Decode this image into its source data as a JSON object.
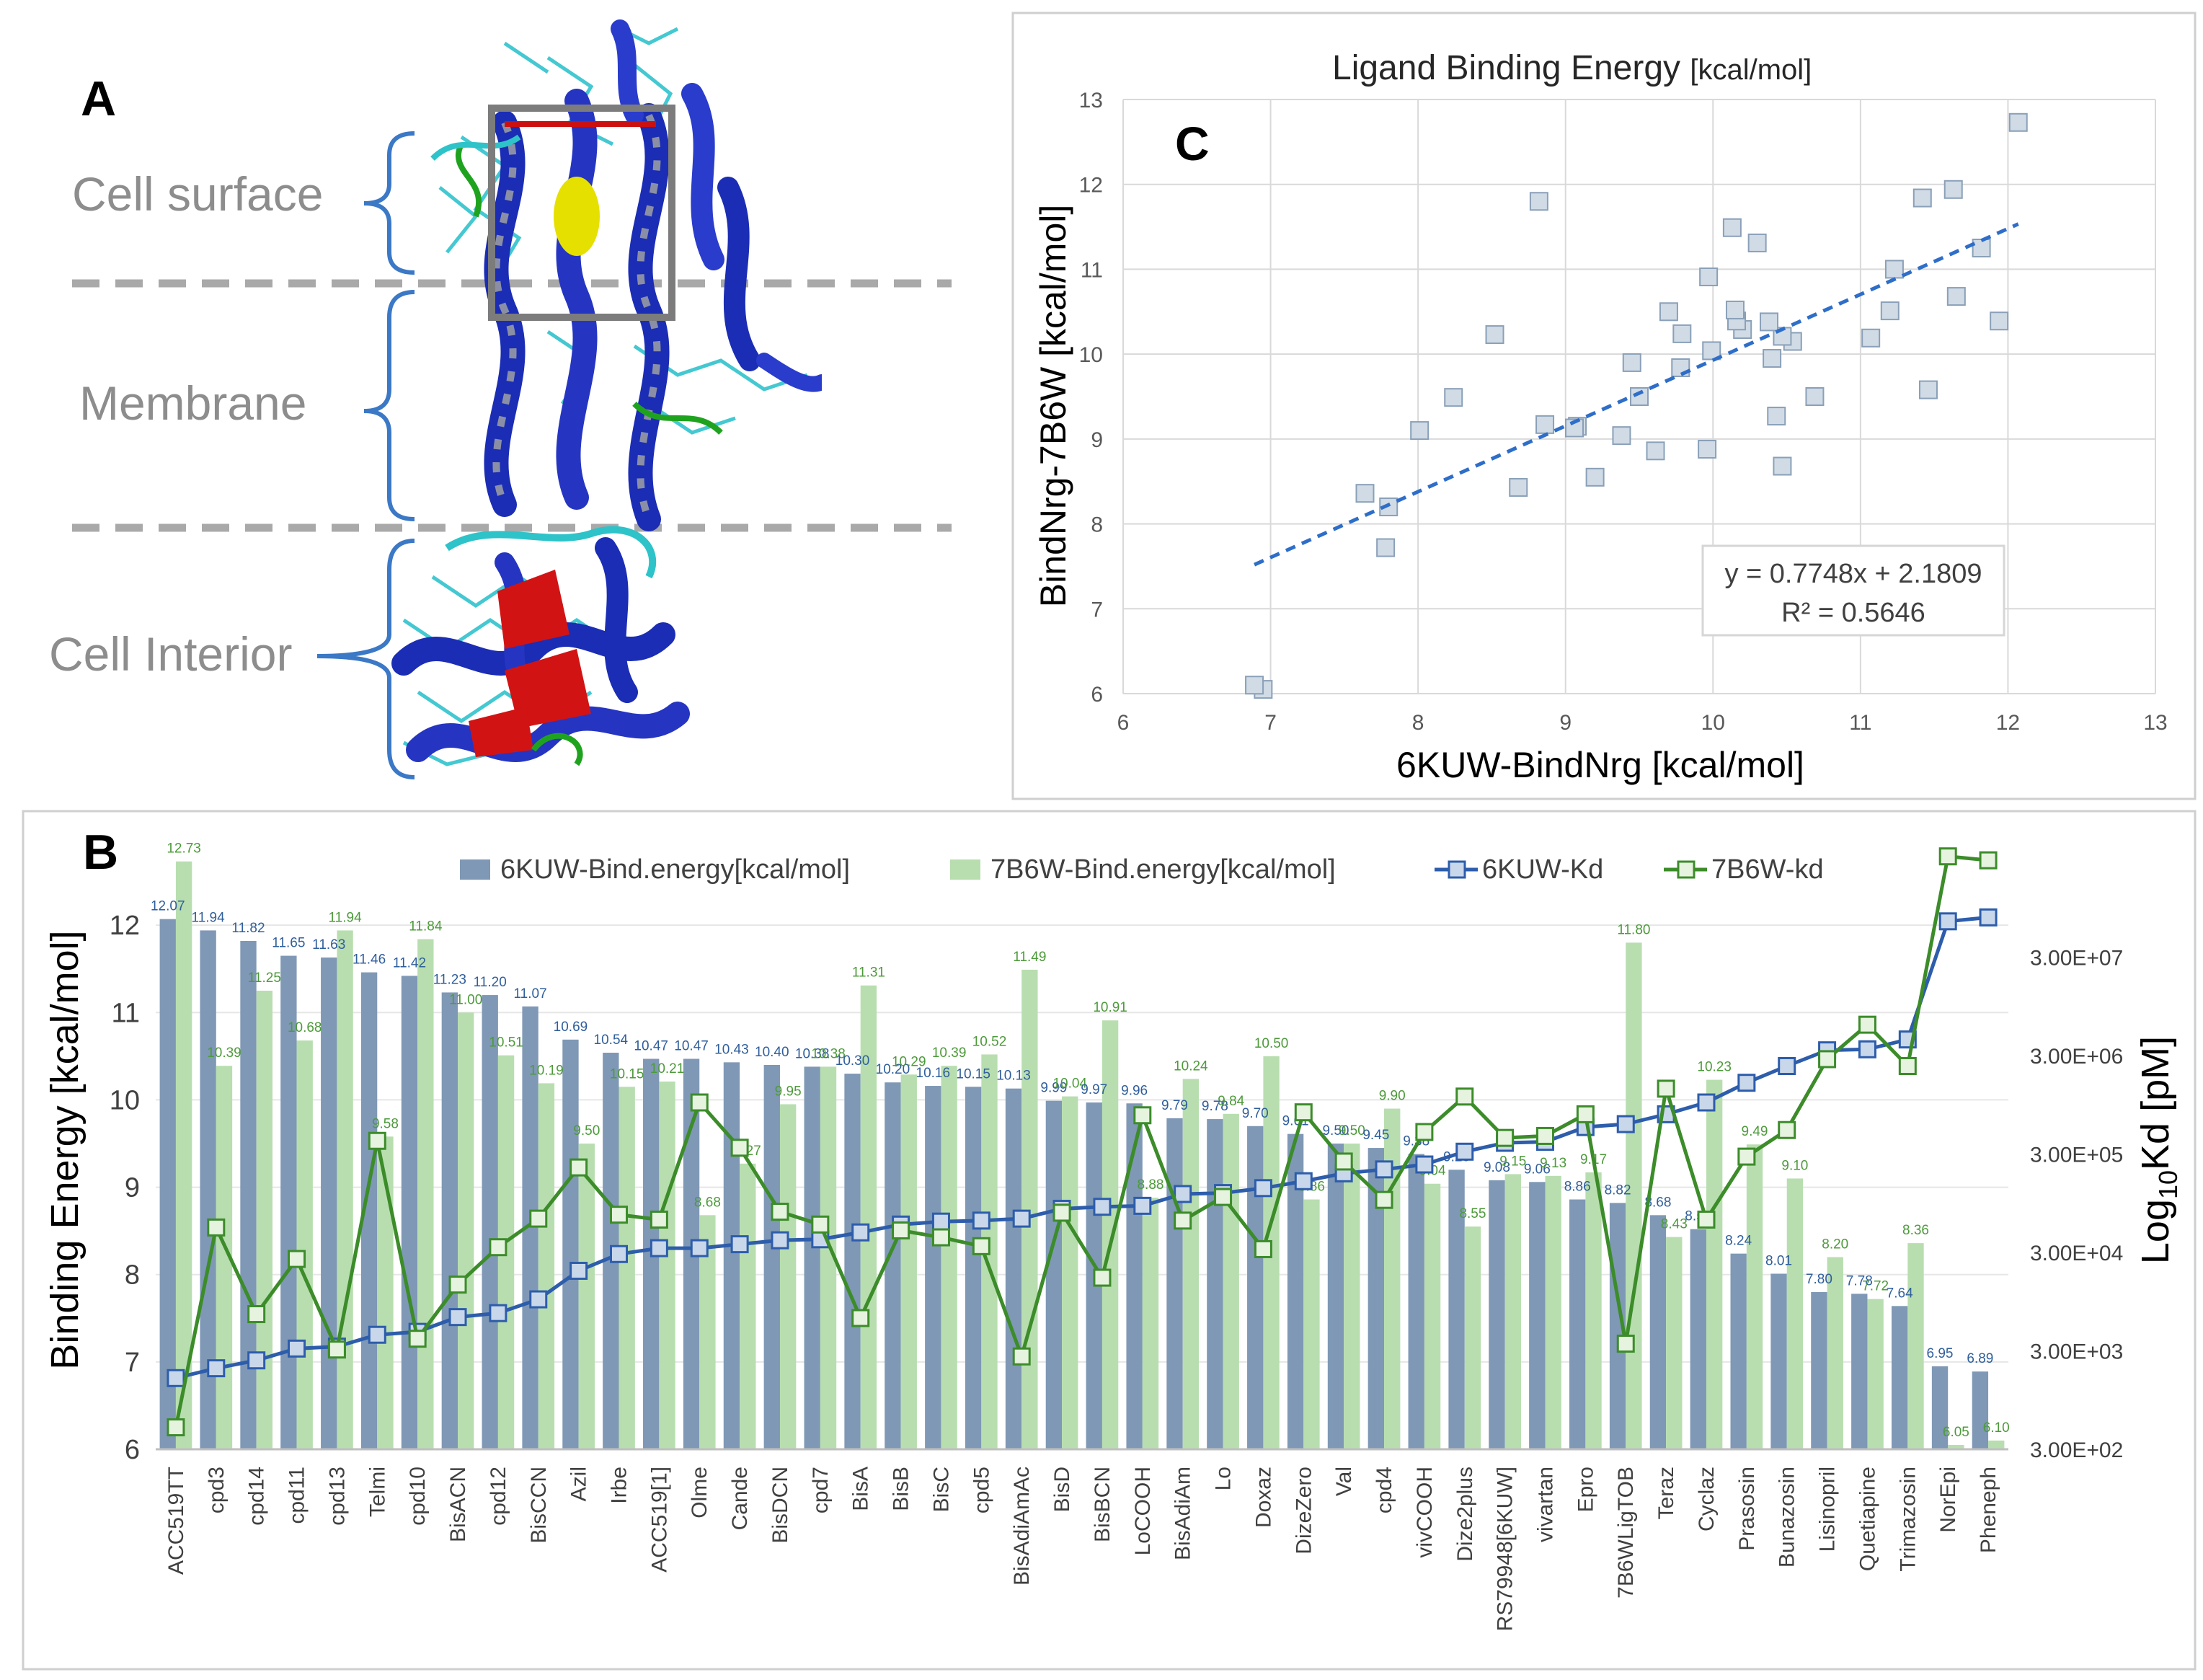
{
  "panel_a": {
    "label": "A",
    "regions": [
      {
        "name": "cell-surface",
        "text": "Cell surface"
      },
      {
        "name": "membrane",
        "text": "Membrane"
      },
      {
        "name": "cell-interior",
        "text": "Cell Interior"
      }
    ]
  },
  "panel_c": {
    "label": "C",
    "title": "Ligand Binding Energy ",
    "title_unit": "[kcal/mol]",
    "equation": "y = 0.7748x + 2.1809",
    "r_squared": "R² = 0.5646"
  },
  "panel_b": {
    "label": "B"
  },
  "colors": {
    "kuw_bar": "#7f98b5",
    "b6w_bar": "#b8deb0",
    "kuw_line": "#2d5dab",
    "b6w_line": "#3c8c2a",
    "kuw_label": "#2f5e9c",
    "b6w_label": "#4d9a3a",
    "scatter_pt": "#d0dbe6",
    "scatter_edge": "#8aa0b8",
    "trend": "#2e6ec9"
  },
  "chart_data": [
    {
      "type": "scatter",
      "title": "Ligand Binding Energy [kcal/mol]",
      "xlabel": "6KUW-BindNrg [kcal/mol]",
      "ylabel": "BindNrg-7B6W [kcal/mol]",
      "xlim": [
        6,
        13
      ],
      "ylim": [
        6,
        13
      ],
      "xticks": [
        6,
        7,
        8,
        9,
        10,
        11,
        12,
        13
      ],
      "yticks": [
        6,
        7,
        8,
        9,
        10,
        11,
        12,
        13
      ],
      "grid": true,
      "trendline": {
        "slope": 0.7748,
        "intercept": 2.1809,
        "x_range": [
          6.89,
          12.07
        ]
      },
      "points_x": [
        12.07,
        11.94,
        11.82,
        11.65,
        11.63,
        11.46,
        11.42,
        11.23,
        11.2,
        11.07,
        10.69,
        10.54,
        10.47,
        10.47,
        10.43,
        10.4,
        10.38,
        10.3,
        10.2,
        10.16,
        10.15,
        10.13,
        9.99,
        9.97,
        9.96,
        9.79,
        9.78,
        9.7,
        9.61,
        9.5,
        9.45,
        9.38,
        9.2,
        9.08,
        9.06,
        8.86,
        8.82,
        8.68,
        8.52,
        8.24,
        8.01,
        7.8,
        7.78,
        7.64,
        6.95,
        6.89
      ],
      "points_y": [
        12.73,
        10.39,
        11.25,
        10.68,
        11.94,
        9.58,
        11.84,
        11.0,
        10.51,
        10.19,
        9.5,
        10.15,
        10.21,
        8.68,
        9.27,
        9.95,
        10.38,
        11.31,
        10.29,
        10.39,
        10.52,
        11.49,
        10.04,
        10.91,
        8.88,
        10.24,
        9.84,
        10.5,
        8.86,
        9.5,
        9.9,
        9.04,
        8.55,
        9.15,
        9.13,
        9.17,
        11.8,
        8.43,
        10.23,
        9.49,
        9.1,
        8.2,
        7.72,
        8.36,
        6.05,
        6.1
      ]
    },
    {
      "type": "bar",
      "ylabel": "Binding Energy [kcal/mol]",
      "y2label": "Log10Kd [pM]",
      "ylim": [
        6,
        13
      ],
      "yticks": [
        6,
        7,
        8,
        9,
        10,
        11,
        12
      ],
      "y2ticks": [
        "3.00E+02",
        "3.00E+03",
        "3.00E+04",
        "3.00E+05",
        "3.00E+06",
        "3.00E+07"
      ],
      "y2_log_range": [
        2.477,
        8.3
      ],
      "legend": [
        "6KUW-Bind.energy[kcal/mol]",
        "7B6W-Bind.energy[kcal/mol]",
        "6KUW-Kd",
        "7B6W-kd"
      ],
      "legend_position": "top",
      "categories": [
        "ACC519TT",
        "cpd3",
        "cpd14",
        "cpd11",
        "cpd13",
        "Telmi",
        "cpd10",
        "BisACN",
        "cpd12",
        "BisCCN",
        "Azil",
        "Irbe",
        "ACC519[1]",
        "Olme",
        "Cande",
        "BisDCN",
        "cpd7",
        "BisA",
        "BisB",
        "BisC",
        "cpd5",
        "BisAdiAmAc",
        "BisD",
        "BisBCN",
        "LoCOOH",
        "BisAdiAm",
        "Lo",
        "Doxaz",
        "DizeZero",
        "Val",
        "cpd4",
        "vivCOOH",
        "Dize2plus",
        "RS79948[6KUW]",
        "vivartan",
        "Epro",
        "7B6WLigTOB",
        "Teraz",
        "Cyclaz",
        "Prasosin",
        "Bunazosin",
        "Lisinopril",
        "Quetiapine",
        "Trimazosin",
        "NorEpi",
        "Pheneph"
      ],
      "series": [
        {
          "name": "6KUW-Bind.energy[kcal/mol]",
          "values": [
            12.07,
            11.94,
            11.82,
            11.65,
            11.63,
            11.46,
            11.42,
            11.23,
            11.2,
            11.07,
            10.69,
            10.54,
            10.47,
            10.47,
            10.43,
            10.4,
            10.38,
            10.3,
            10.2,
            10.16,
            10.15,
            10.13,
            9.99,
            9.97,
            9.96,
            9.79,
            9.78,
            9.7,
            9.61,
            9.5,
            9.45,
            9.38,
            9.2,
            9.08,
            9.06,
            8.86,
            8.82,
            8.68,
            8.52,
            8.24,
            8.01,
            7.8,
            7.78,
            7.64,
            6.95,
            6.89
          ],
          "labels": [
            "12.07",
            "11.94",
            "11.82",
            "11.65",
            "11.63",
            "11.46",
            "11.42",
            "11.23",
            "11.20",
            "11.07",
            "10.69",
            "10.54",
            "10.47",
            "10.47",
            "10.43",
            "10.40",
            "10.38",
            "10.30",
            "10.20",
            "10.16",
            "10.15",
            "10.13",
            "9.99",
            "9.97",
            "9.96",
            "9.79",
            "9.78",
            "9.70",
            "9.61",
            "9.50",
            "9.45",
            "9.38",
            "9.20",
            "9.08",
            "9.06",
            "8.86",
            "8.82",
            "8.68",
            "8.52",
            "8.24",
            "8.01",
            "7.80",
            "7.78",
            "7.64",
            "6.95",
            "6.89"
          ]
        },
        {
          "name": "7B6W-Bind.energy[kcal/mol]",
          "values": [
            12.73,
            10.39,
            11.25,
            10.68,
            11.94,
            9.58,
            11.84,
            11.0,
            10.51,
            10.19,
            9.5,
            10.15,
            10.21,
            8.68,
            9.27,
            9.95,
            10.38,
            11.31,
            10.29,
            10.39,
            10.52,
            11.49,
            10.04,
            10.91,
            8.88,
            10.24,
            9.84,
            10.5,
            8.86,
            9.5,
            9.9,
            9.04,
            8.55,
            9.15,
            9.13,
            9.17,
            11.8,
            8.43,
            10.23,
            9.49,
            9.1,
            8.2,
            7.72,
            8.36,
            6.05,
            6.1
          ],
          "labels": [
            "12.73",
            "10.39",
            "11.25",
            "10.68",
            "11.94",
            "9.58",
            "11.84",
            "11.00",
            "10.51",
            "10.19",
            "9.50",
            "10.15",
            "10.21",
            "8.68",
            "9.27",
            "9.95",
            "10.38",
            "11.31",
            "10.29",
            "10.39",
            "10.52",
            "11.49",
            "10.04",
            "10.91",
            "8.88",
            "10.24",
            "9.84",
            "10.50",
            "8.86",
            "9.50",
            "9.90",
            "9.04",
            "8.55",
            "9.15",
            "9.13",
            "9.17",
            "11.80",
            "8.43",
            "10.23",
            "9.49",
            "9.10",
            "8.20",
            "7.72",
            "8.36",
            "6.05",
            "6.10"
          ]
        },
        {
          "name": "6KUW-Kd",
          "log10_values": [
            3.2,
            3.3,
            3.38,
            3.5,
            3.52,
            3.64,
            3.67,
            3.82,
            3.86,
            4.0,
            4.29,
            4.46,
            4.52,
            4.52,
            4.56,
            4.6,
            4.61,
            4.68,
            4.76,
            4.79,
            4.8,
            4.82,
            4.92,
            4.94,
            4.95,
            5.07,
            5.08,
            5.13,
            5.2,
            5.28,
            5.32,
            5.37,
            5.5,
            5.59,
            5.6,
            5.75,
            5.78,
            5.88,
            6.0,
            6.2,
            6.37,
            6.53,
            6.54,
            6.64,
            7.84,
            7.88
          ]
        },
        {
          "name": "7B6W-kd",
          "log10_values": [
            2.7,
            4.73,
            3.85,
            4.41,
            3.49,
            5.61,
            3.6,
            4.15,
            4.53,
            4.82,
            5.34,
            4.86,
            4.81,
            6.0,
            5.54,
            4.89,
            4.76,
            3.81,
            4.7,
            4.63,
            4.54,
            3.42,
            4.88,
            4.22,
            5.87,
            4.8,
            5.04,
            4.51,
            5.9,
            5.4,
            5.01,
            5.7,
            6.06,
            5.64,
            5.66,
            5.88,
            3.55,
            6.14,
            4.81,
            5.45,
            5.72,
            6.44,
            6.79,
            6.37,
            8.5,
            8.46
          ]
        }
      ]
    }
  ]
}
